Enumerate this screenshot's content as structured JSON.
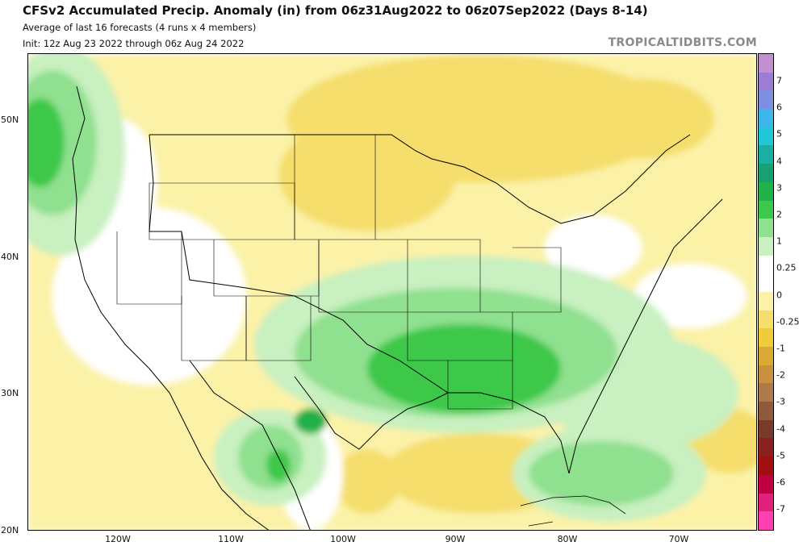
{
  "header": {
    "title": "CFSv2 Accumulated Precip. Anomaly (in) from 06z31Aug2022 to 06z07Sep2022 (Days 8-14)",
    "subtitle": "Average of last 16 forecasts (4 runs x 4 members)",
    "init": "Init: 12z Aug 23 2022 through 06z Aug 24 2022",
    "site": "TROPICALTIDBITS.COM"
  },
  "axes": {
    "lat_labels": [
      "50N",
      "40N",
      "30N",
      "20N"
    ],
    "lon_labels": [
      "120W",
      "110W",
      "100W",
      "90W",
      "80W",
      "70W"
    ]
  },
  "colorbar": {
    "labels": [
      "7",
      "6",
      "5",
      "4",
      "3",
      "2",
      "1",
      "0.25",
      "0",
      "-0.25",
      "-1",
      "-2",
      "-3",
      "-4",
      "-5",
      "-6",
      "-7"
    ],
    "colors": [
      "#c48fcf",
      "#9b7ed4",
      "#7c8fe0",
      "#3fb6ea",
      "#21c7d9",
      "#19b0a3",
      "#18a070",
      "#23b14a",
      "#3cc84a",
      "#8fe08f",
      "#c8f0c0",
      "#ffffff",
      "#ffffff",
      "#fbf2a8",
      "#f5de6c",
      "#f0cb3a",
      "#dca934",
      "#c99040",
      "#ad7a4c",
      "#8f5a3c",
      "#7a3a2a",
      "#8a2020",
      "#a01010",
      "#c00040",
      "#e0207a",
      "#ff40b0"
    ]
  }
}
